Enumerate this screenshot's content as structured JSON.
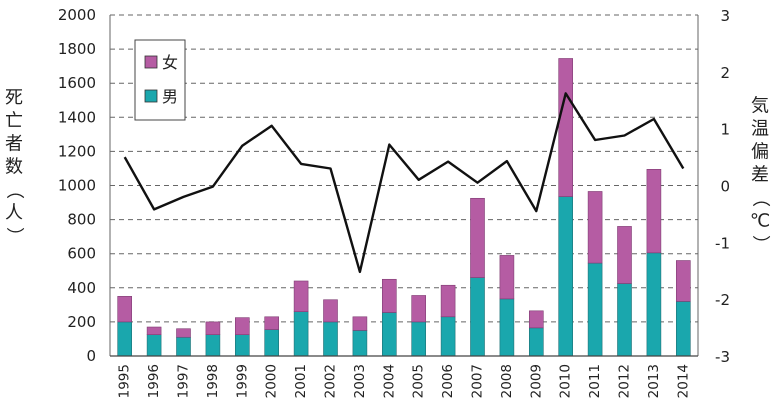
{
  "chart_data": {
    "type": "bar",
    "stacked": true,
    "categories": [
      "1995",
      "1996",
      "1997",
      "1998",
      "1999",
      "2000",
      "2001",
      "2002",
      "2003",
      "2004",
      "2005",
      "2006",
      "2007",
      "2008",
      "2009",
      "2010",
      "2011",
      "2012",
      "2013",
      "2014"
    ],
    "series": [
      {
        "name": "男",
        "axis": "left",
        "color": "#1aa7ad",
        "values": [
          200,
          125,
          110,
          125,
          125,
          155,
          260,
          200,
          150,
          255,
          200,
          230,
          460,
          335,
          165,
          935,
          545,
          425,
          605,
          320
        ]
      },
      {
        "name": "女",
        "axis": "left",
        "color": "#b55ca3",
        "values": [
          150,
          45,
          50,
          75,
          100,
          75,
          180,
          130,
          80,
          195,
          155,
          185,
          465,
          255,
          100,
          810,
          420,
          335,
          490,
          240
        ]
      },
      {
        "name": "気温偏差",
        "type": "line",
        "axis": "right",
        "color": "#111111",
        "values": [
          0.5,
          -0.42,
          -0.2,
          -0.02,
          0.7,
          1.05,
          0.38,
          0.3,
          -1.52,
          0.72,
          0.1,
          0.42,
          0.05,
          0.43,
          -0.45,
          1.62,
          0.8,
          0.88,
          1.17,
          0.3
        ]
      }
    ],
    "ylabel": "死亡者数（人）",
    "y2label": "気温偏差（℃）",
    "ylim": [
      0,
      2000
    ],
    "yticks": [
      0,
      200,
      400,
      600,
      800,
      1000,
      1200,
      1400,
      1600,
      1800,
      2000
    ],
    "y2lim": [
      -3,
      3
    ],
    "y2ticks": [
      -3,
      -2,
      -1,
      0,
      1,
      2,
      3
    ],
    "grid": true,
    "legend_position": "top-left",
    "legend_order": [
      "女",
      "男"
    ]
  }
}
